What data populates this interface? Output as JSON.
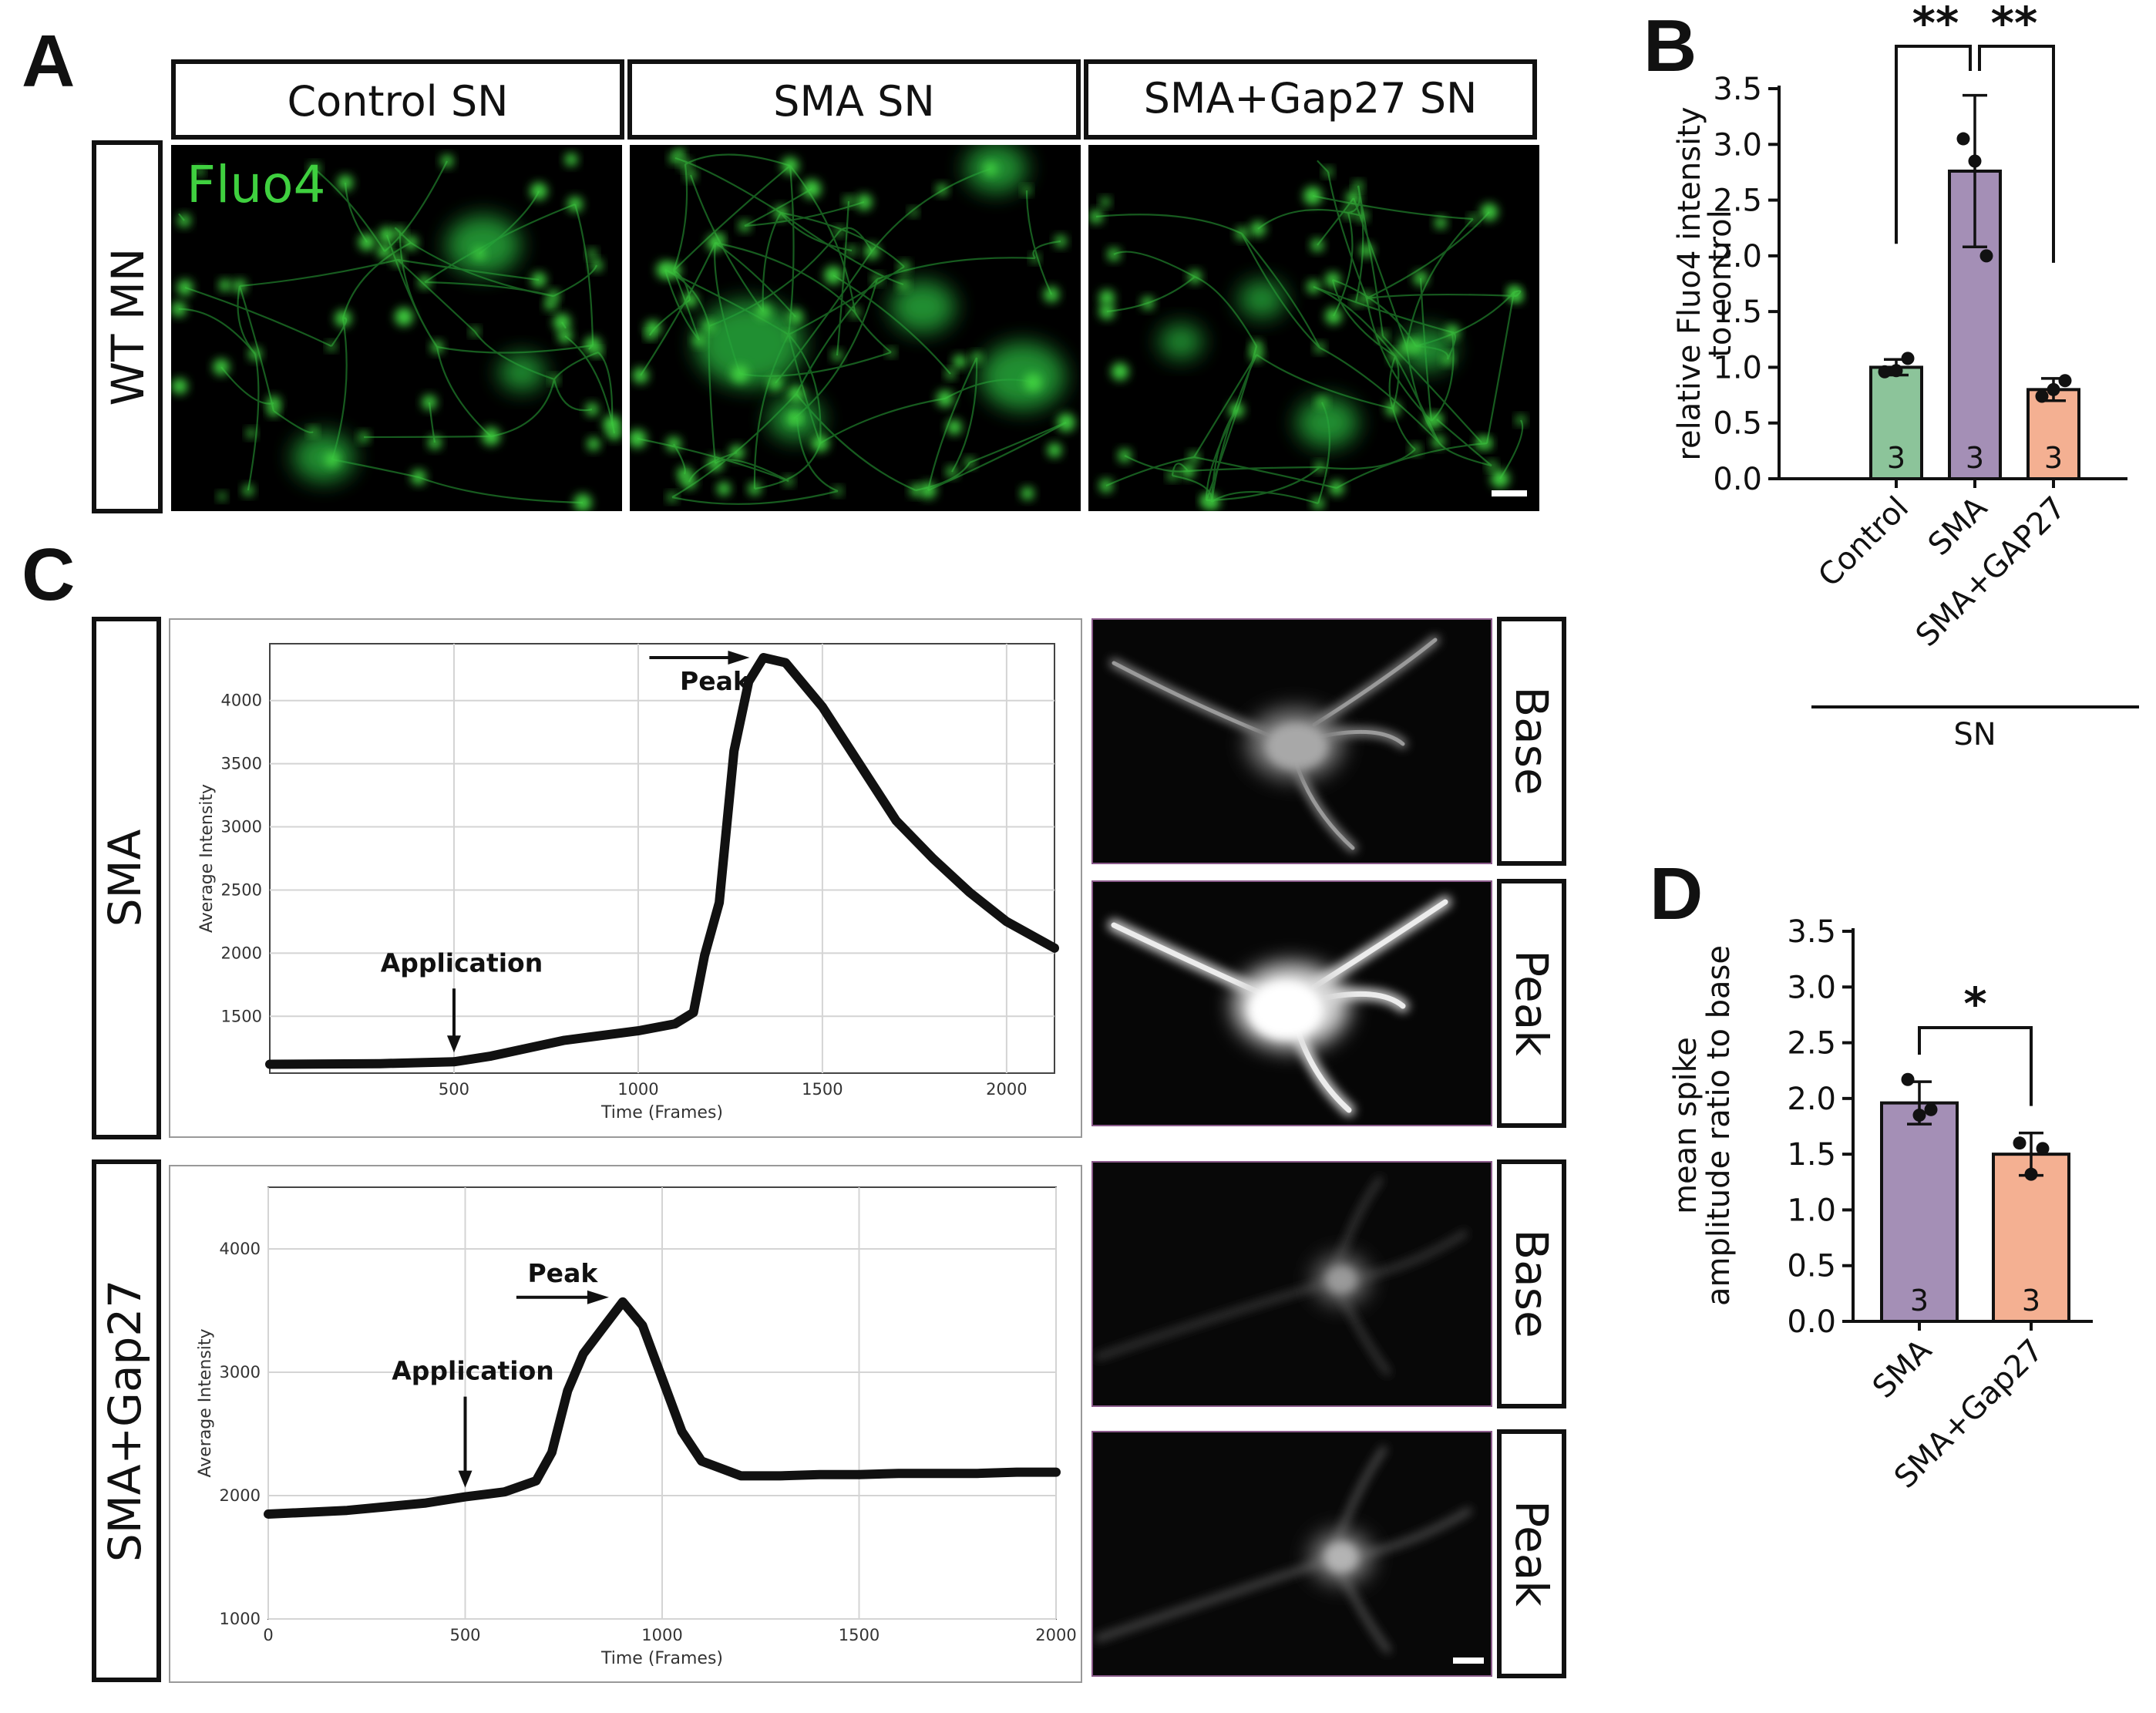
{
  "panel_labels": {
    "a": "A",
    "b": "B",
    "c": "C",
    "d": "D"
  },
  "panel_a": {
    "column_headers": [
      "Control SN",
      "SMA SN",
      "SMA+Gap27 SN"
    ],
    "row_label": "WT MN",
    "stain_label": "Fluo4",
    "stain_color": "#3fd03f"
  },
  "panel_c": {
    "row_labels": [
      "SMA",
      "SMA+Gap27"
    ],
    "image_labels": [
      "Base",
      "Peak",
      "Base",
      "Peak"
    ]
  },
  "chart_data": [
    {
      "id": "B",
      "type": "bar",
      "categories": [
        "Control",
        "SMA",
        "SMA+GAP27"
      ],
      "values": [
        1.0,
        2.76,
        0.8
      ],
      "error": [
        0.07,
        0.68,
        0.1
      ],
      "points": [
        [
          0.96,
          0.97,
          1.08
        ],
        [
          3.05,
          2.85,
          2.0
        ],
        [
          0.74,
          0.8,
          0.88
        ]
      ],
      "n": [
        "3",
        "3",
        "3"
      ],
      "colors": [
        "#8cc49a",
        "#a48fb6",
        "#f4b092"
      ],
      "ylabel": [
        "relative Fluo4 intensity",
        "to control"
      ],
      "ylim": [
        0,
        3.5
      ],
      "yticks": [
        "0.0",
        "0.5",
        "1.0",
        "1.5",
        "2.0",
        "2.5",
        "3.0",
        "3.5"
      ],
      "group_label": "SN",
      "significance": [
        "**",
        "**"
      ]
    },
    {
      "id": "D",
      "type": "bar",
      "categories": [
        "SMA",
        "SMA+Gap27"
      ],
      "values": [
        1.96,
        1.5
      ],
      "error": [
        0.19,
        0.19
      ],
      "points": [
        [
          2.17,
          1.85,
          1.9
        ],
        [
          1.6,
          1.32,
          1.55
        ]
      ],
      "n": [
        "3",
        "3"
      ],
      "colors": [
        "#a48fb6",
        "#f4b092"
      ],
      "ylabel": [
        "mean spike",
        "amplitude ratio to base"
      ],
      "ylim": [
        0,
        3.5
      ],
      "yticks": [
        "0.0",
        "0.5",
        "1.0",
        "1.5",
        "2.0",
        "2.5",
        "3.0",
        "3.5"
      ],
      "significance": [
        "*"
      ]
    },
    {
      "id": "C-SMA",
      "type": "line",
      "xlabel": "Time (Frames)",
      "ylabel": "Average Intensity",
      "xlim": [
        0,
        2130
      ],
      "ylim": [
        1050,
        4450
      ],
      "xticks": [
        "500",
        "1000",
        "1500",
        "2000"
      ],
      "yticks": [
        "1500",
        "2000",
        "2500",
        "3000",
        "3500",
        "4000"
      ],
      "x": [
        0,
        300,
        500,
        600,
        800,
        1000,
        1100,
        1150,
        1180,
        1220,
        1260,
        1300,
        1340,
        1400,
        1500,
        1600,
        1700,
        1800,
        1900,
        2000,
        2130
      ],
      "y": [
        1120,
        1125,
        1140,
        1185,
        1310,
        1385,
        1440,
        1530,
        1980,
        2400,
        3600,
        4150,
        4340,
        4300,
        3950,
        3500,
        3050,
        2750,
        2480,
        2250,
        2040
      ],
      "annotations": [
        {
          "text": "Application",
          "x": 500
        },
        {
          "text": "Peak",
          "x": 1340
        }
      ]
    },
    {
      "id": "C-SMA+Gap27",
      "type": "line",
      "xlabel": "Time (Frames)",
      "ylabel": "Average Intensity",
      "xlim": [
        0,
        2000
      ],
      "ylim": [
        1000,
        4500
      ],
      "xticks": [
        "0",
        "500",
        "1000",
        "1500",
        "2000"
      ],
      "yticks": [
        "1000",
        "2000",
        "3000",
        "4000"
      ],
      "x": [
        0,
        200,
        400,
        500,
        600,
        680,
        720,
        760,
        800,
        850,
        900,
        950,
        1000,
        1050,
        1100,
        1200,
        1300,
        1400,
        1500,
        1600,
        1700,
        1800,
        1900,
        2000
      ],
      "y": [
        1850,
        1880,
        1940,
        1990,
        2030,
        2120,
        2350,
        2850,
        3150,
        3360,
        3570,
        3380,
        2950,
        2520,
        2280,
        2160,
        2160,
        2170,
        2170,
        2180,
        2180,
        2180,
        2190,
        2190
      ],
      "annotations": [
        {
          "text": "Application",
          "x": 500
        },
        {
          "text": "Peak",
          "x": 900
        }
      ]
    }
  ]
}
